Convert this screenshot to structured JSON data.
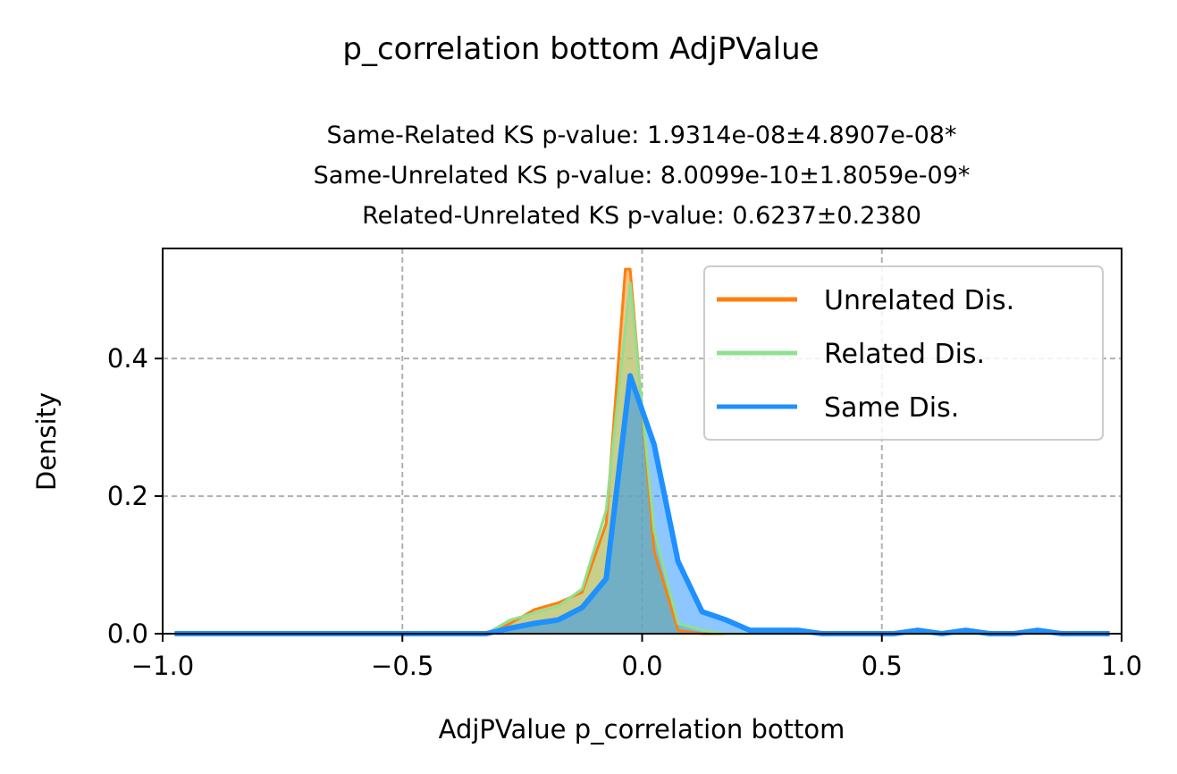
{
  "chart_data": {
    "type": "area",
    "suptitle": "p_correlation bottom AdjPValue",
    "subtitle_lines": [
      "Same-Related KS p-value: 1.9314e-08±4.8907e-08*",
      "Same-Unrelated KS p-value: 8.0099e-10±1.8059e-09*",
      "Related-Unrelated KS p-value: 0.6237±0.2380"
    ],
    "xlabel": "AdjPValue p_correlation bottom",
    "ylabel": "Density",
    "xlim": [
      -1.0,
      1.0
    ],
    "ylim": [
      0.0,
      0.56
    ],
    "xticks": [
      -1.0,
      -0.5,
      0.0,
      0.5,
      1.0
    ],
    "xtick_labels": [
      "−1.0",
      "−0.5",
      "0.0",
      "0.5",
      "1.0"
    ],
    "yticks": [
      0.0,
      0.2,
      0.4
    ],
    "ytick_labels": [
      "0.0",
      "0.2",
      "0.4"
    ],
    "grid": true,
    "legend_position": "top-right",
    "series": [
      {
        "name": "Unrelated Dis.",
        "color": "#ff7f0e",
        "fill_color": "#ff7f0e",
        "x": [
          -0.975,
          -0.325,
          -0.275,
          -0.225,
          -0.175,
          -0.125,
          -0.075,
          -0.035,
          -0.025,
          0.025,
          0.075,
          0.125,
          0.975
        ],
        "y": [
          0.0,
          0.0,
          0.015,
          0.035,
          0.045,
          0.06,
          0.16,
          0.53,
          0.53,
          0.12,
          0.005,
          0.0,
          0.0
        ]
      },
      {
        "name": "Related Dis.",
        "color": "#90e090",
        "fill_color": "#90e090",
        "x": [
          -0.975,
          -0.325,
          -0.275,
          -0.225,
          -0.175,
          -0.125,
          -0.075,
          -0.025,
          0.025,
          0.075,
          0.125,
          0.175,
          0.975
        ],
        "y": [
          0.0,
          0.0,
          0.02,
          0.03,
          0.04,
          0.065,
          0.18,
          0.51,
          0.15,
          0.015,
          0.005,
          0.0,
          0.0
        ]
      },
      {
        "name": "Same Dis.",
        "color": "#1e90ff",
        "fill_color": "#1e90ff",
        "x": [
          -0.975,
          -0.325,
          -0.275,
          -0.225,
          -0.175,
          -0.125,
          -0.075,
          -0.025,
          0.025,
          0.075,
          0.125,
          0.175,
          0.225,
          0.275,
          0.325,
          0.375,
          0.425,
          0.475,
          0.525,
          0.575,
          0.625,
          0.675,
          0.725,
          0.775,
          0.825,
          0.875,
          0.925,
          0.975
        ],
        "y": [
          0.0,
          0.0,
          0.008,
          0.015,
          0.02,
          0.038,
          0.08,
          0.375,
          0.275,
          0.105,
          0.032,
          0.02,
          0.005,
          0.005,
          0.005,
          0.0,
          0.0,
          0.0,
          0.0,
          0.005,
          0.0,
          0.005,
          0.0,
          0.0,
          0.005,
          0.0,
          0.0,
          0.0
        ]
      }
    ]
  }
}
